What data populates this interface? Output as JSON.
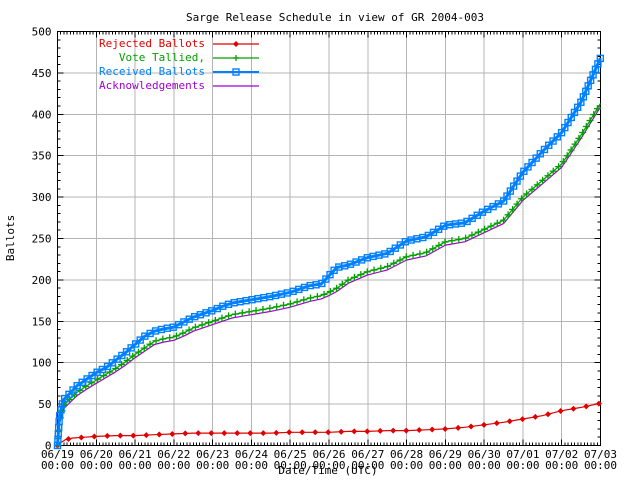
{
  "chart_data": {
    "type": "line",
    "title": "Sarge Release Schedule in view of GR 2004-003",
    "xlabel": "Date/Time (UTC)",
    "ylabel": "Ballots",
    "ylim": [
      0,
      500
    ],
    "y_tick_step": 50,
    "y_minor_step": 10,
    "xlim_days": [
      0,
      14
    ],
    "x_minor_per_day": 12,
    "grid": true,
    "legend_position": "top-left",
    "background_color": "#ffffff",
    "axis_color": "#000000",
    "grid_color": "#b4b4b4",
    "x_ticks": [
      {
        "date": "06/19",
        "time": "00:00"
      },
      {
        "date": "06/20",
        "time": "00:00"
      },
      {
        "date": "06/21",
        "time": "00:00"
      },
      {
        "date": "06/22",
        "time": "00:00"
      },
      {
        "date": "06/23",
        "time": "00:00"
      },
      {
        "date": "06/24",
        "time": "00:00"
      },
      {
        "date": "06/25",
        "time": "00:00"
      },
      {
        "date": "06/26",
        "time": "00:00"
      },
      {
        "date": "06/27",
        "time": "00:00"
      },
      {
        "date": "06/28",
        "time": "00:00"
      },
      {
        "date": "06/29",
        "time": "00:00"
      },
      {
        "date": "06/30",
        "time": "00:00"
      },
      {
        "date": "07/01",
        "time": "00:00"
      },
      {
        "date": "07/02",
        "time": "00:00"
      },
      {
        "date": "07/03",
        "time": "00:00"
      }
    ],
    "y_ticks": [
      0,
      50,
      100,
      150,
      200,
      250,
      300,
      350,
      400,
      450,
      500
    ],
    "series": [
      {
        "name": "Rejected Ballots",
        "color": "#e00000",
        "marker": "diamond",
        "line_width": 1.2,
        "marker_spacing": 13,
        "z": 1,
        "x": [
          0,
          0.05,
          0.1,
          0.2,
          0.4,
          0.7,
          1,
          1.5,
          2,
          2.5,
          3,
          3.5,
          4,
          4.5,
          5,
          5.5,
          6,
          6.5,
          7,
          7.5,
          8,
          8.5,
          9,
          9.5,
          10,
          10.5,
          11,
          11.5,
          12,
          12.5,
          13,
          13.5,
          14
        ],
        "y": [
          0,
          2,
          4,
          7,
          9,
          10,
          11,
          12,
          12,
          13,
          14,
          15,
          15,
          15,
          15,
          15,
          16,
          16,
          16,
          17,
          17,
          18,
          18,
          19,
          20,
          22,
          25,
          28,
          32,
          36,
          42,
          46,
          51
        ]
      },
      {
        "name": "Vote Tallied,",
        "color": "#00a000",
        "marker": "plus",
        "line_width": 1.2,
        "marker_spacing": 7,
        "z": 3,
        "x": [
          0,
          0.05,
          0.15,
          0.3,
          0.5,
          0.75,
          1,
          1.25,
          1.5,
          1.75,
          2,
          2.25,
          2.5,
          2.75,
          3,
          3.25,
          3.5,
          3.75,
          4,
          4.25,
          4.5,
          4.75,
          5,
          5.5,
          6,
          6.5,
          6.8,
          7,
          7.2,
          7.5,
          8,
          8.5,
          9,
          9.5,
          10,
          10.5,
          11,
          11.5,
          12,
          12.5,
          13,
          13.5,
          14
        ],
        "y": [
          0,
          30,
          48,
          55,
          64,
          72,
          79,
          86,
          93,
          101,
          110,
          118,
          126,
          129,
          131,
          136,
          142,
          146,
          150,
          154,
          158,
          160,
          162,
          166,
          171,
          178,
          181,
          185,
          190,
          200,
          210,
          216,
          228,
          233,
          246,
          250,
          261,
          272,
          300,
          320,
          340,
          375,
          413
        ]
      },
      {
        "name": "Received Ballots",
        "color": "#0080ff",
        "marker": "square",
        "line_width": 3,
        "marker_spacing": 6,
        "z": 4,
        "x": [
          0,
          0.05,
          0.15,
          0.3,
          0.5,
          0.75,
          1,
          1.25,
          1.5,
          1.75,
          2,
          2.25,
          2.5,
          2.75,
          3,
          3.25,
          3.5,
          3.75,
          4,
          4.25,
          4.5,
          4.75,
          5,
          5.5,
          6,
          6.5,
          6.8,
          7,
          7.2,
          7.5,
          8,
          8.5,
          9,
          9.5,
          10,
          10.5,
          11,
          11.5,
          12,
          12.5,
          13,
          13.5,
          14
        ],
        "y": [
          0,
          35,
          55,
          62,
          72,
          80,
          88,
          94,
          103,
          112,
          122,
          132,
          138,
          141,
          143,
          149,
          155,
          159,
          163,
          168,
          172,
          174,
          176,
          180,
          185,
          193,
          195,
          205,
          215,
          218,
          227,
          232,
          247,
          252,
          266,
          269,
          283,
          295,
          330,
          355,
          378,
          415,
          468
        ]
      },
      {
        "name": "Acknowledgements",
        "color": "#a000d0",
        "marker": "none",
        "line_width": 1.2,
        "marker_spacing": 0,
        "z": 2,
        "x": [
          0,
          0.05,
          0.15,
          0.3,
          0.5,
          0.75,
          1,
          1.25,
          1.5,
          1.75,
          2,
          2.25,
          2.5,
          2.75,
          3,
          3.25,
          3.5,
          3.75,
          4,
          4.25,
          4.5,
          4.75,
          5,
          5.5,
          6,
          6.5,
          6.8,
          7,
          7.2,
          7.5,
          8,
          8.5,
          9,
          9.5,
          10,
          10.5,
          11,
          11.5,
          12,
          12.5,
          13,
          13.5,
          14
        ],
        "y": [
          0,
          26,
          44,
          51,
          60,
          68,
          75,
          82,
          89,
          97,
          106,
          114,
          122,
          125,
          127,
          132,
          138,
          142,
          146,
          150,
          154,
          156,
          158,
          162,
          167,
          174,
          177,
          181,
          186,
          196,
          206,
          212,
          224,
          229,
          242,
          246,
          257,
          268,
          296,
          316,
          336,
          371,
          409
        ]
      }
    ]
  }
}
